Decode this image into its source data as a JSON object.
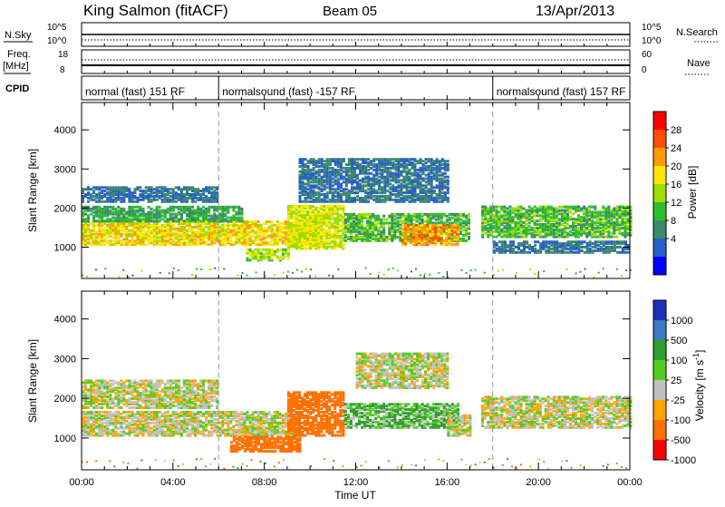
{
  "header": {
    "station": "King Salmon (fitACF)",
    "beam": "Beam 05",
    "date": "13/Apr/2013"
  },
  "strips": {
    "nsky_label": "N.Sky",
    "nsky_ticks": [
      "10^5",
      "10^0"
    ],
    "nsearch_label": "N.Search",
    "nsearch_ticks": [
      "10^5",
      "10^0"
    ],
    "freq_label": "Freq.",
    "freq_unit": "[MHz]",
    "freq_ticks": [
      "18",
      "8"
    ],
    "nave_label": "Nave",
    "nave_ticks": [
      "60",
      "0"
    ],
    "cpid_label": "CPID",
    "cpid_segments": [
      {
        "label": "normal (fast) 151 RF",
        "start_h": 0,
        "end_h": 6
      },
      {
        "label": "normalsound (fast) -157 RF",
        "start_h": 6,
        "end_h": 18
      },
      {
        "label": "normalsound (fast) 157 RF",
        "start_h": 18,
        "end_h": 24
      }
    ]
  },
  "power_colorbar": {
    "label": "Power [dB]",
    "ticks": [
      "28",
      "24",
      "20",
      "16",
      "12",
      "8",
      "4"
    ],
    "colors": [
      "#ff0000",
      "#ff4d00",
      "#ff9c00",
      "#ffe600",
      "#9ddc00",
      "#2ebd2e",
      "#3a8a6a",
      "#2a5ec8",
      "#0000ff"
    ]
  },
  "velocity_colorbar": {
    "label": "Velocity [m s^-1]",
    "ticks": [
      "1000",
      "500",
      "100",
      "25",
      "-25",
      "-100",
      "-500",
      "-1000"
    ],
    "colors": [
      "#1d2fb8",
      "#3a7cc4",
      "#2e9e2e",
      "#55cc22",
      "#c0c0c0",
      "#ffa500",
      "#ff7000",
      "#ff0000"
    ]
  },
  "chart_data": {
    "type": "heatmap",
    "xlabel": "Time UT",
    "x_ticks": [
      "00:00",
      "04:00",
      "08:00",
      "12:00",
      "16:00",
      "20:00",
      "00:00"
    ],
    "xlim_hours": [
      0,
      24
    ],
    "ylabel": "Slant Range [km]",
    "y_ticks": [
      1000,
      2000,
      3000,
      4000
    ],
    "ylim_km": [
      200,
      4700
    ],
    "dashed_markers_h": [
      6,
      18
    ],
    "panels": [
      {
        "name": "power",
        "bands": [
          {
            "t0": 0,
            "t1": 10.5,
            "r0": 1100,
            "r1": 1700,
            "value": 20
          },
          {
            "t0": 0,
            "t1": 7,
            "r0": 1700,
            "r1": 2100,
            "value": 10
          },
          {
            "t0": 0,
            "t1": 6,
            "r0": 2200,
            "r1": 2600,
            "value": 6
          },
          {
            "t0": 7.2,
            "t1": 9,
            "r0": 700,
            "r1": 1000,
            "value": 16
          },
          {
            "t0": 9,
            "t1": 11.5,
            "r0": 1000,
            "r1": 2100,
            "value": 18
          },
          {
            "t0": 9.5,
            "t1": 16,
            "r0": 2200,
            "r1": 3300,
            "value": 6
          },
          {
            "t0": 11.5,
            "t1": 17,
            "r0": 1200,
            "r1": 1900,
            "value": 12
          },
          {
            "t0": 14,
            "t1": 16.5,
            "r0": 1100,
            "r1": 1600,
            "value": 24
          },
          {
            "t0": 17.5,
            "t1": 24,
            "r0": 1300,
            "r1": 2100,
            "value": 12
          },
          {
            "t0": 18,
            "t1": 24,
            "r0": 900,
            "r1": 1200,
            "value": 6
          }
        ]
      },
      {
        "name": "velocity",
        "bands": [
          {
            "t0": 0,
            "t1": 9.5,
            "r0": 1100,
            "r1": 1700,
            "value": 0
          },
          {
            "t0": 0,
            "t1": 6,
            "r0": 1800,
            "r1": 2500,
            "value": 0
          },
          {
            "t0": 6.5,
            "t1": 9.5,
            "r0": 700,
            "r1": 1100,
            "value": -200
          },
          {
            "t0": 9,
            "t1": 11.5,
            "r0": 1100,
            "r1": 2200,
            "value": -300
          },
          {
            "t0": 11.5,
            "t1": 16.5,
            "r0": 1300,
            "r1": 1900,
            "value": 60
          },
          {
            "t0": 16,
            "t1": 17,
            "r0": 1100,
            "r1": 1600,
            "value": 0
          },
          {
            "t0": 17.5,
            "t1": 24,
            "r0": 1300,
            "r1": 2100,
            "value": 0
          },
          {
            "t0": 12,
            "t1": 16,
            "r0": 2300,
            "r1": 3200,
            "value": 0
          }
        ]
      }
    ]
  }
}
